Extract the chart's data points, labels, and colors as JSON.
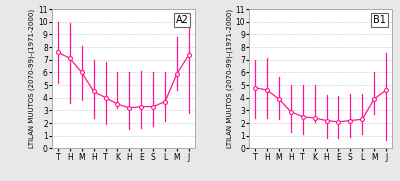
{
  "months": [
    "T",
    "H",
    "M",
    "H",
    "T",
    "K",
    "H",
    "E",
    "S",
    "L",
    "M",
    "J"
  ],
  "panel_A2": {
    "label": "A2",
    "mean": [
      7.6,
      7.1,
      6.0,
      4.5,
      4.0,
      3.5,
      3.2,
      3.3,
      3.3,
      3.7,
      5.9,
      7.4
    ],
    "err_low": [
      2.4,
      3.5,
      2.2,
      2.1,
      2.1,
      0.3,
      1.7,
      1.7,
      1.5,
      1.5,
      1.3,
      4.6
    ],
    "err_high": [
      2.4,
      2.8,
      2.1,
      2.5,
      2.8,
      2.5,
      2.8,
      2.8,
      2.7,
      2.3,
      2.9,
      2.8
    ]
  },
  "panel_B1": {
    "label": "B1",
    "mean": [
      4.8,
      4.6,
      3.9,
      2.9,
      2.5,
      2.4,
      2.2,
      2.1,
      2.2,
      2.3,
      3.9,
      4.6
    ],
    "err_low": [
      2.4,
      2.2,
      1.6,
      1.6,
      1.4,
      0.3,
      1.4,
      1.3,
      1.3,
      1.2,
      1.2,
      3.9
    ],
    "err_high": [
      2.2,
      2.5,
      1.7,
      2.1,
      2.5,
      2.6,
      2.0,
      2.0,
      2.1,
      2.0,
      2.1,
      2.9
    ]
  },
  "ylabel": "LTILAN MUUTOS (2070-99)-(1971-2000)",
  "ylim": [
    0,
    11
  ],
  "yticks": [
    0,
    1,
    2,
    3,
    4,
    5,
    6,
    7,
    8,
    9,
    10,
    11
  ],
  "color": "#FF1493",
  "background_color": "#e8e8e8",
  "panel_bg": "#ffffff",
  "label_fontsize": 5.0,
  "tick_fontsize": 5.5,
  "annot_fontsize": 7
}
